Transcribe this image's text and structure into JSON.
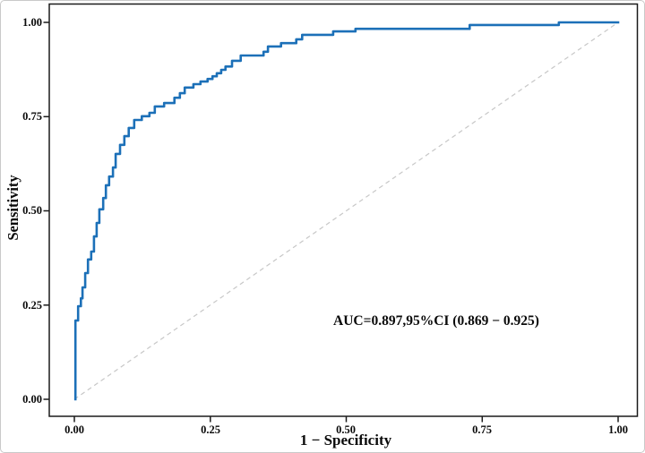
{
  "figure": {
    "background_color": "#ffffff",
    "outer_border_color": "#c9c9c9",
    "frame_color": "#1a1a1a"
  },
  "chart_data": {
    "type": "line",
    "subtype": "roc-curve",
    "title": "",
    "xlabel": "1 − Specificity",
    "ylabel": "Sensitivity",
    "xlim": [
      0,
      1
    ],
    "ylim": [
      0,
      1
    ],
    "grid": false,
    "legend": "none",
    "tick_positions": [
      0,
      0.25,
      0.5,
      0.75,
      1
    ],
    "x_ticks": [
      "0.00",
      "0.25",
      "0.50",
      "0.75",
      "1.00"
    ],
    "y_ticks": [
      "0.00",
      "0.25",
      "0.50",
      "0.75",
      "1.00"
    ],
    "annotation": {
      "text": "AUC=0.897,95%CI (0.869 − 0.925)",
      "auc": 0.897,
      "ci_lower": 0.869,
      "ci_upper": 0.925,
      "ci_level": "95%"
    },
    "series": [
      {
        "name": "ROC curve",
        "style": "step",
        "color": "#1c70b8",
        "points": [
          [
            0.002,
            0.0
          ],
          [
            0.002,
            0.209
          ],
          [
            0.007,
            0.247
          ],
          [
            0.012,
            0.268
          ],
          [
            0.015,
            0.297
          ],
          [
            0.02,
            0.335
          ],
          [
            0.025,
            0.371
          ],
          [
            0.031,
            0.392
          ],
          [
            0.036,
            0.432
          ],
          [
            0.041,
            0.468
          ],
          [
            0.046,
            0.504
          ],
          [
            0.053,
            0.534
          ],
          [
            0.058,
            0.568
          ],
          [
            0.064,
            0.591
          ],
          [
            0.071,
            0.615
          ],
          [
            0.076,
            0.651
          ],
          [
            0.084,
            0.675
          ],
          [
            0.092,
            0.698
          ],
          [
            0.1,
            0.72
          ],
          [
            0.11,
            0.741
          ],
          [
            0.124,
            0.751
          ],
          [
            0.138,
            0.76
          ],
          [
            0.148,
            0.777
          ],
          [
            0.165,
            0.786
          ],
          [
            0.184,
            0.8
          ],
          [
            0.194,
            0.812
          ],
          [
            0.203,
            0.827
          ],
          [
            0.219,
            0.836
          ],
          [
            0.232,
            0.843
          ],
          [
            0.245,
            0.85
          ],
          [
            0.254,
            0.857
          ],
          [
            0.262,
            0.865
          ],
          [
            0.27,
            0.874
          ],
          [
            0.278,
            0.883
          ],
          [
            0.29,
            0.898
          ],
          [
            0.306,
            0.912
          ],
          [
            0.348,
            0.922
          ],
          [
            0.356,
            0.936
          ],
          [
            0.38,
            0.945
          ],
          [
            0.408,
            0.955
          ],
          [
            0.419,
            0.967
          ],
          [
            0.476,
            0.976
          ],
          [
            0.517,
            0.983
          ],
          [
            0.727,
            0.993
          ],
          [
            0.891,
            1.0
          ],
          [
            1.0,
            1.0
          ]
        ]
      },
      {
        "name": "Reference diagonal",
        "style": "dashed",
        "color": "#c7c7c7",
        "points": [
          [
            0,
            0
          ],
          [
            1,
            1
          ]
        ]
      }
    ]
  }
}
